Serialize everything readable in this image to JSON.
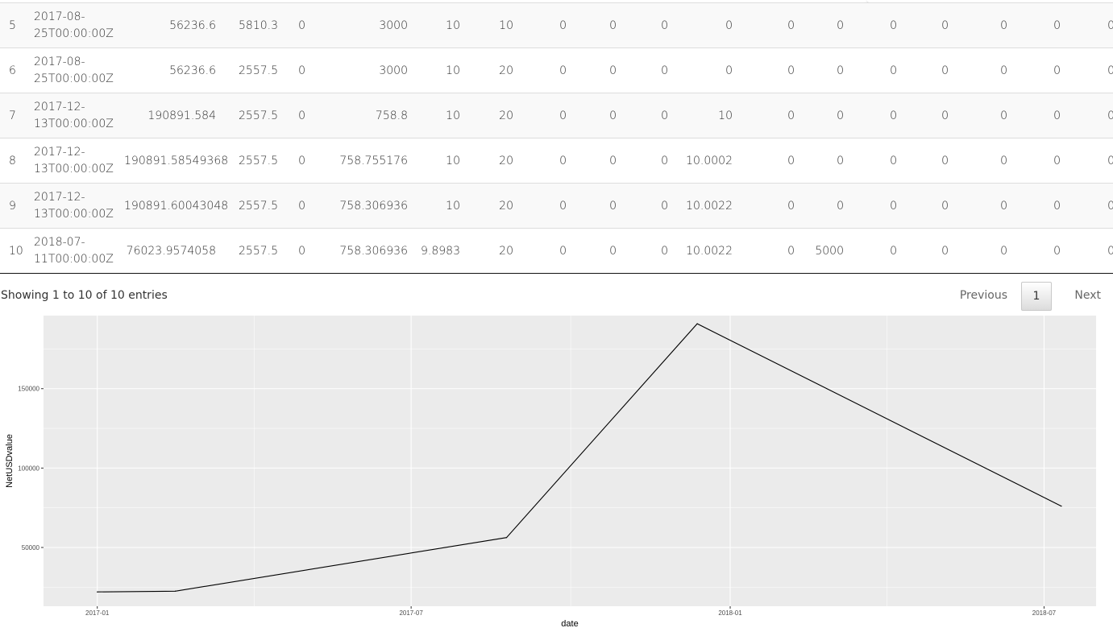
{
  "table": {
    "rows": [
      {
        "idx": "5",
        "date": "2017-08-25T00:00:00Z",
        "c1": "56236.6",
        "c2": "5810.3",
        "c3": "0",
        "c4": "3000",
        "c5": "10",
        "c6": "10",
        "c7": "0",
        "c8": "0",
        "c9": "0",
        "c10": "0",
        "c11": "0",
        "c12": "0",
        "c13": "0",
        "c14": "0",
        "c15": "0",
        "c16": "0",
        "c17": "0"
      },
      {
        "idx": "6",
        "date": "2017-08-25T00:00:00Z",
        "c1": "56236.6",
        "c2": "2557.5",
        "c3": "0",
        "c4": "3000",
        "c5": "10",
        "c6": "20",
        "c7": "0",
        "c8": "0",
        "c9": "0",
        "c10": "0",
        "c11": "0",
        "c12": "0",
        "c13": "0",
        "c14": "0",
        "c15": "0",
        "c16": "0",
        "c17": "0"
      },
      {
        "idx": "7",
        "date": "2017-12-13T00:00:00Z",
        "c1": "190891.584",
        "c2": "2557.5",
        "c3": "0",
        "c4": "758.8",
        "c5": "10",
        "c6": "20",
        "c7": "0",
        "c8": "0",
        "c9": "0",
        "c10": "10",
        "c11": "0",
        "c12": "0",
        "c13": "0",
        "c14": "0",
        "c15": "0",
        "c16": "0",
        "c17": "0"
      },
      {
        "idx": "8",
        "date": "2017-12-13T00:00:00Z",
        "c1": "190891.58549368",
        "c2": "2557.5",
        "c3": "0",
        "c4": "758.755176",
        "c5": "10",
        "c6": "20",
        "c7": "0",
        "c8": "0",
        "c9": "0",
        "c10": "10.0002",
        "c11": "0",
        "c12": "0",
        "c13": "0",
        "c14": "0",
        "c15": "0",
        "c16": "0",
        "c17": "0"
      },
      {
        "idx": "9",
        "date": "2017-12-13T00:00:00Z",
        "c1": "190891.60043048",
        "c2": "2557.5",
        "c3": "0",
        "c4": "758.306936",
        "c5": "10",
        "c6": "20",
        "c7": "0",
        "c8": "0",
        "c9": "0",
        "c10": "10.0022",
        "c11": "0",
        "c12": "0",
        "c13": "0",
        "c14": "0",
        "c15": "0",
        "c16": "0",
        "c17": "0"
      },
      {
        "idx": "10",
        "date": "2018-07-11T00:00:00Z",
        "c1": "76023.9574058",
        "c2": "2557.5",
        "c3": "0",
        "c4": "758.306936",
        "c5": "9.8983",
        "c6": "20",
        "c7": "0",
        "c8": "0",
        "c9": "0",
        "c10": "10.0022",
        "c11": "0",
        "c12": "5000",
        "c13": "0",
        "c14": "0",
        "c15": "0",
        "c16": "0",
        "c17": "0"
      }
    ]
  },
  "footer": {
    "info": "Showing 1 to 10 of 10 entries",
    "previous_label": "Previous",
    "current_page": "1",
    "next_label": "Next"
  },
  "chart_data": {
    "type": "line",
    "xlabel": "date",
    "ylabel": "NetUSDvalue",
    "x_tick_labels": [
      "2017-01",
      "2017-07",
      "2018-01",
      "2018-07"
    ],
    "y_tick_labels": [
      "50000",
      "100000",
      "150000"
    ],
    "ylim": [
      13000,
      196000
    ],
    "xlim": [
      "2016-12-01",
      "2018-07-31"
    ],
    "series": [
      {
        "x": [
          "2017-01-01",
          "2017-02-15",
          "2017-08-25",
          "2017-12-13",
          "2018-07-11"
        ],
        "y": [
          22000,
          22500,
          56236.6,
          190891.6,
          76023.96
        ]
      }
    ],
    "grid": true,
    "colors": {
      "panel": "#ebebeb",
      "grid": "#ffffff",
      "line": "#000000"
    }
  }
}
